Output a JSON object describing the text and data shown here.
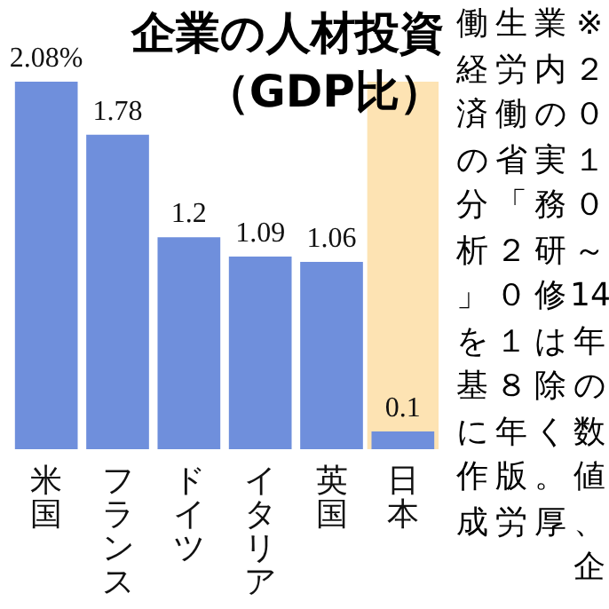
{
  "chart_data": {
    "type": "bar",
    "title": "企業の人材投資（GDP比）",
    "categories": [
      "米国",
      "フランス",
      "ドイツ",
      "イタリア",
      "英国",
      "日本"
    ],
    "values": [
      2.08,
      1.78,
      1.2,
      1.09,
      1.06,
      0.1
    ],
    "color": "#6f8fdc",
    "value_labels": [
      "2.08%",
      "1.78",
      "1.2",
      "1.09",
      "1.06",
      "0.1"
    ],
    "tick_labels": "x",
    "bands": [
      {
        "axis": "x",
        "from": "日本",
        "to": "日本",
        "color": "#fde3b3"
      }
    ],
    "annotations": [
      "※２０１０～14年の数値、企",
      "業内の実務研修は除く。厚",
      "生労働省「２０１８年版労",
      "働経済の分析」を基に作成"
    ]
  }
}
